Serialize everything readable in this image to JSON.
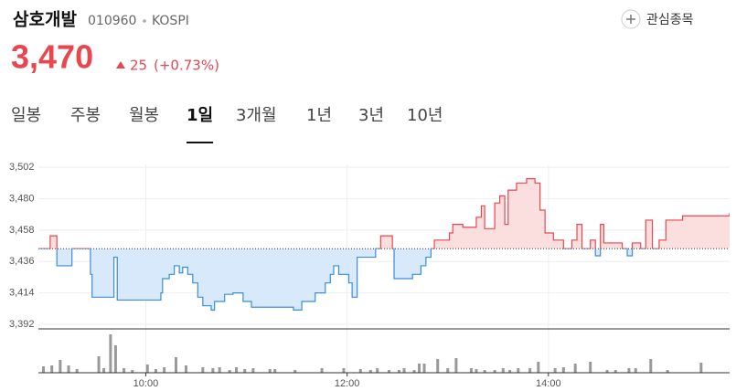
{
  "header": {
    "name": "삼호개발",
    "code": "010960",
    "market": "KOSPI",
    "watch_button": "관심종목"
  },
  "price": {
    "current": "3,470",
    "change": "25",
    "change_pct": "(+0.73%)"
  },
  "tabs": {
    "items": [
      "일봉",
      "주봉",
      "월봉",
      "1일",
      "3개월",
      "1년",
      "3년",
      "10년"
    ],
    "selected": 3
  },
  "chart_data": [
    {
      "type": "line",
      "x": [
        536,
        543,
        547,
        556,
        557,
        567,
        568,
        572,
        581,
        583,
        598,
        609,
        610,
        614,
        617,
        620,
        622,
        625,
        628,
        631,
        634,
        639,
        641,
        647,
        652,
        658,
        663,
        677,
        688,
        693,
        701,
        707,
        710,
        712,
        715,
        721,
        723,
        726,
        734,
        737,
        740,
        747,
        748,
        759,
        764,
        767,
        770,
        772,
        775,
        781,
        783,
        789,
        797,
        800,
        802,
        808,
        811,
        814,
        816,
        821,
        827,
        832,
        835,
        838,
        843,
        849,
        854,
        857,
        860,
        865,
        868,
        871,
        873,
        879,
        884,
        887,
        890,
        895,
        898,
        902,
        906,
        910,
        920,
        948
      ],
      "series": [
        {
          "values": [
            3445,
            3454,
            3433,
            3445,
            3445,
            3427,
            3411,
            3411,
            3439,
            3409,
            3409,
            3414,
            3424,
            3427,
            3433,
            3428,
            3432,
            3427,
            3421,
            3411,
            3405,
            3402,
            3408,
            3413,
            3414,
            3408,
            3404,
            3404,
            3402,
            3408,
            3414,
            3421,
            3427,
            3433,
            3427,
            3421,
            3411,
            3439,
            3439,
            3445,
            3454,
            3445,
            3424,
            3427,
            3433,
            3439,
            3445,
            3451,
            3451,
            3456,
            3462,
            3460,
            3467,
            3475,
            3459,
            3477,
            3482,
            3462,
            3486,
            3491,
            3494,
            3491,
            3472,
            3456,
            3451,
            3445,
            3451,
            3462,
            3445,
            3451,
            3440,
            3462,
            3449,
            3449,
            3445,
            3440,
            3449,
            3445,
            3465,
            3445,
            3451,
            3465,
            3468,
            3470
          ],
          "up_color": "#e8474f",
          "down_color": "#3a8ddb",
          "up_fill": "#fbdede",
          "down_fill": "#d7e9fb"
        }
      ],
      "reference_value": 3445,
      "xlim": [
        536,
        948
      ],
      "xticks": [
        {
          "value": 600,
          "label": "10:00"
        },
        {
          "value": 720,
          "label": "12:00"
        },
        {
          "value": 840,
          "label": "14:00"
        }
      ],
      "ylim": [
        3392,
        3504
      ],
      "yticks": [
        {
          "value": 3502,
          "label": "3,502"
        },
        {
          "value": 3480,
          "label": "3,480"
        },
        {
          "value": 3458,
          "label": "3,458"
        },
        {
          "value": 3436,
          "label": "3,436"
        },
        {
          "value": 3414,
          "label": "3,414"
        },
        {
          "value": 3392,
          "label": "3,392"
        }
      ],
      "grid": true
    },
    {
      "type": "bar",
      "x": [
        539,
        544,
        549,
        554,
        559,
        572,
        575,
        579,
        582,
        587,
        592,
        601,
        606,
        611,
        618,
        624,
        634,
        640,
        644,
        650,
        654,
        659,
        664,
        674,
        677,
        689,
        705,
        718,
        728,
        734,
        738,
        745,
        751,
        754,
        760,
        763,
        766,
        774,
        780,
        785,
        794,
        797,
        802,
        808,
        813,
        817,
        822,
        829,
        834,
        844,
        849,
        856,
        865,
        875,
        880,
        888,
        892,
        901,
        911,
        931
      ],
      "values": [
        7,
        8,
        14,
        8,
        4,
        18,
        5,
        42,
        30,
        5,
        3,
        9,
        4,
        6,
        17,
        8,
        6,
        5,
        6,
        3,
        6,
        4,
        5,
        4,
        4,
        3,
        5,
        5,
        4,
        3,
        5,
        3,
        3,
        5,
        3,
        10,
        10,
        15,
        5,
        16,
        5,
        4,
        3,
        3,
        5,
        3,
        5,
        5,
        12,
        5,
        6,
        10,
        12,
        3,
        3,
        5,
        5,
        15,
        3,
        11
      ],
      "color": "#999999",
      "xlim": [
        536,
        948
      ],
      "ylim": [
        0,
        46
      ]
    }
  ]
}
